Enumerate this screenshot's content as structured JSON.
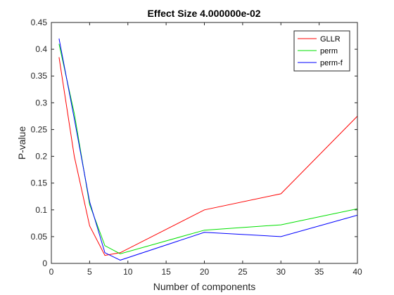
{
  "chart_data": {
    "type": "line",
    "title": "Effect Size 4.000000e-02",
    "xlabel": "Number of components",
    "ylabel": "P-value",
    "xlim": [
      0,
      40
    ],
    "ylim": [
      0,
      0.45
    ],
    "xticks": [
      0,
      5,
      10,
      15,
      20,
      25,
      30,
      35,
      40
    ],
    "yticks": [
      0,
      0.05,
      0.1,
      0.15,
      0.2,
      0.25,
      0.3,
      0.35,
      0.4,
      0.45
    ],
    "xtick_labels": [
      "0",
      "5",
      "10",
      "15",
      "20",
      "25",
      "30",
      "35",
      "40"
    ],
    "ytick_labels": [
      "0",
      "0.05",
      "0.1",
      "0.15",
      "0.2",
      "0.25",
      "0.3",
      "0.35",
      "0.4",
      "0.45"
    ],
    "grid": false,
    "legend_position": "top-right",
    "series": [
      {
        "name": "GLLR",
        "color": "#ff0000",
        "x": [
          1,
          3,
          5,
          7,
          9,
          20,
          30,
          40
        ],
        "y": [
          0.385,
          0.2,
          0.07,
          0.015,
          0.02,
          0.1,
          0.13,
          0.275
        ]
      },
      {
        "name": "perm",
        "color": "#00e000",
        "x": [
          1,
          3,
          5,
          7,
          9,
          20,
          30,
          40
        ],
        "y": [
          0.41,
          0.28,
          0.11,
          0.033,
          0.018,
          0.062,
          0.072,
          0.102
        ]
      },
      {
        "name": "perm-f",
        "color": "#0000ff",
        "x": [
          1,
          3,
          5,
          7,
          9,
          20,
          30,
          40
        ],
        "y": [
          0.42,
          0.27,
          0.115,
          0.02,
          0.006,
          0.058,
          0.05,
          0.09
        ]
      }
    ]
  }
}
